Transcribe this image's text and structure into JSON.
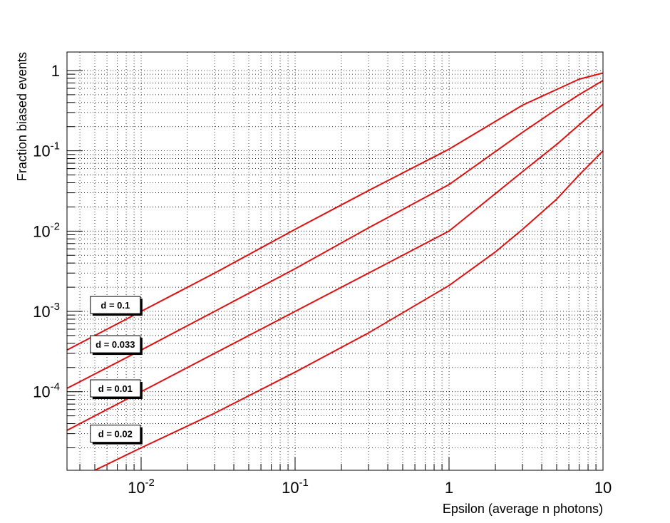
{
  "chart_data": {
    "type": "line",
    "title": "",
    "xlabel": "Epsilon (average n photons)",
    "ylabel": "Fraction biased events",
    "xscale": "log",
    "yscale": "log",
    "xlim": [
      0.0033,
      10
    ],
    "ylim": [
      1.05e-05,
      1.7
    ],
    "grid": true,
    "line_color": "#e01010",
    "x_ticks": [
      {
        "value": 0.01,
        "base": "10",
        "exp": "-2"
      },
      {
        "value": 0.1,
        "base": "10",
        "exp": "-1"
      },
      {
        "value": 1,
        "base": "1",
        "exp": ""
      },
      {
        "value": 10,
        "base": "10",
        "exp": ""
      }
    ],
    "y_ticks": [
      {
        "value": 0.0001,
        "base": "10",
        "exp": "-4"
      },
      {
        "value": 0.001,
        "base": "10",
        "exp": "-3"
      },
      {
        "value": 0.01,
        "base": "10",
        "exp": "-2"
      },
      {
        "value": 0.1,
        "base": "10",
        "exp": "-1"
      },
      {
        "value": 1,
        "base": "1",
        "exp": ""
      }
    ],
    "series": [
      {
        "name": "d = 0.1",
        "x": [
          0.0033,
          0.01,
          0.03,
          0.1,
          0.3,
          1,
          3,
          5,
          7,
          10
        ],
        "y": [
          0.00033,
          0.001,
          0.003,
          0.0105,
          0.032,
          0.105,
          0.37,
          0.58,
          0.78,
          0.93
        ]
      },
      {
        "name": "d = 0.033",
        "x": [
          0.0033,
          0.01,
          0.03,
          0.1,
          0.3,
          1,
          3,
          5,
          7,
          10
        ],
        "y": [
          0.00011,
          0.00033,
          0.001,
          0.0034,
          0.011,
          0.038,
          0.17,
          0.33,
          0.5,
          0.75
        ]
      },
      {
        "name": "d = 0.01",
        "x": [
          0.0033,
          0.01,
          0.03,
          0.1,
          0.3,
          1,
          3,
          5,
          7,
          10
        ],
        "y": [
          3.3e-05,
          0.0001,
          0.0003,
          0.001,
          0.003,
          0.01,
          0.055,
          0.12,
          0.21,
          0.38
        ]
      },
      {
        "name": "d = 0.02",
        "x": [
          0.005,
          0.01,
          0.03,
          0.1,
          0.3,
          1,
          2,
          3,
          5,
          7,
          10
        ],
        "y": [
          1.05e-05,
          2e-05,
          5.4e-05,
          0.000175,
          0.00054,
          0.0021,
          0.0055,
          0.0105,
          0.025,
          0.05,
          0.1
        ]
      }
    ],
    "labels": [
      {
        "text": "d = 0.1",
        "series": 0,
        "x": 0.0068,
        "y": 0.0012
      },
      {
        "text": "d = 0.033",
        "series": 1,
        "x": 0.0068,
        "y": 0.00039
      },
      {
        "text": "d = 0.01",
        "series": 2,
        "x": 0.0068,
        "y": 0.00011
      },
      {
        "text": "d = 0.02",
        "series": 3,
        "x": 0.0068,
        "y": 3e-05
      }
    ]
  }
}
